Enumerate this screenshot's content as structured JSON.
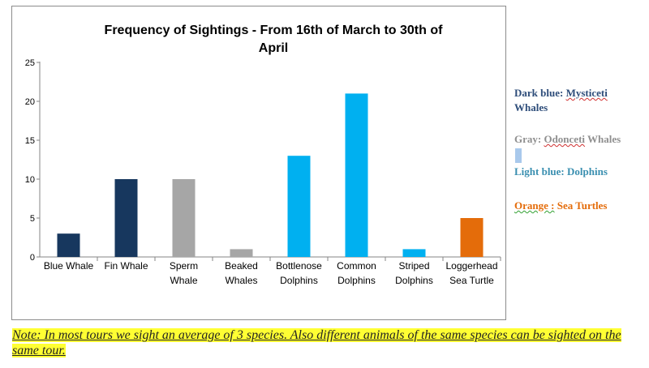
{
  "chart_data": {
    "type": "bar",
    "title": "Frequency of Sightings - From 16th of March to 30th of April",
    "title_lines": [
      "Frequency of Sightings - From 16th of March to 30th of",
      "April"
    ],
    "categories": [
      "Blue Whale",
      "Fin Whale",
      "Sperm Whale",
      "Beaked Whales",
      "Bottlenose Dolphins",
      "Common Dolphins",
      "Striped Dolphins",
      "Loggerhead Sea Turtle"
    ],
    "category_lines": [
      [
        "Blue Whale"
      ],
      [
        "Fin Whale"
      ],
      [
        "Sperm",
        "Whale"
      ],
      [
        "Beaked",
        "Whales"
      ],
      [
        "Bottlenose",
        "Dolphins"
      ],
      [
        "Common",
        "Dolphins"
      ],
      [
        "Striped",
        "Dolphins"
      ],
      [
        "Loggerhead",
        "Sea Turtle"
      ]
    ],
    "values": [
      3,
      10,
      10,
      1,
      13,
      21,
      1,
      5
    ],
    "colors": [
      "#17375e",
      "#17375e",
      "#a6a6a6",
      "#a6a6a6",
      "#00b0f0",
      "#00b0f0",
      "#00b0f0",
      "#e46c0a"
    ],
    "ylim": [
      0,
      25
    ],
    "yticks": [
      0,
      5,
      10,
      15,
      20,
      25
    ],
    "xlabel": "",
    "ylabel": "",
    "grid": false,
    "legend": "right"
  },
  "legend": {
    "dark_prefix": "Dark blue: ",
    "dark_term": "Mysticeti",
    "dark_rest": "Whales",
    "gray_prefix": "Gray: ",
    "gray_term": "Odonceti",
    "gray_rest": " Whales",
    "light": "Light blue: Dolphins",
    "orange_term": "Orange :",
    "orange_rest": " Sea Turtles"
  },
  "note": "Note: In most tours we sight an average of 3 species. Also different animals of the same species can be sighted on the same tour."
}
